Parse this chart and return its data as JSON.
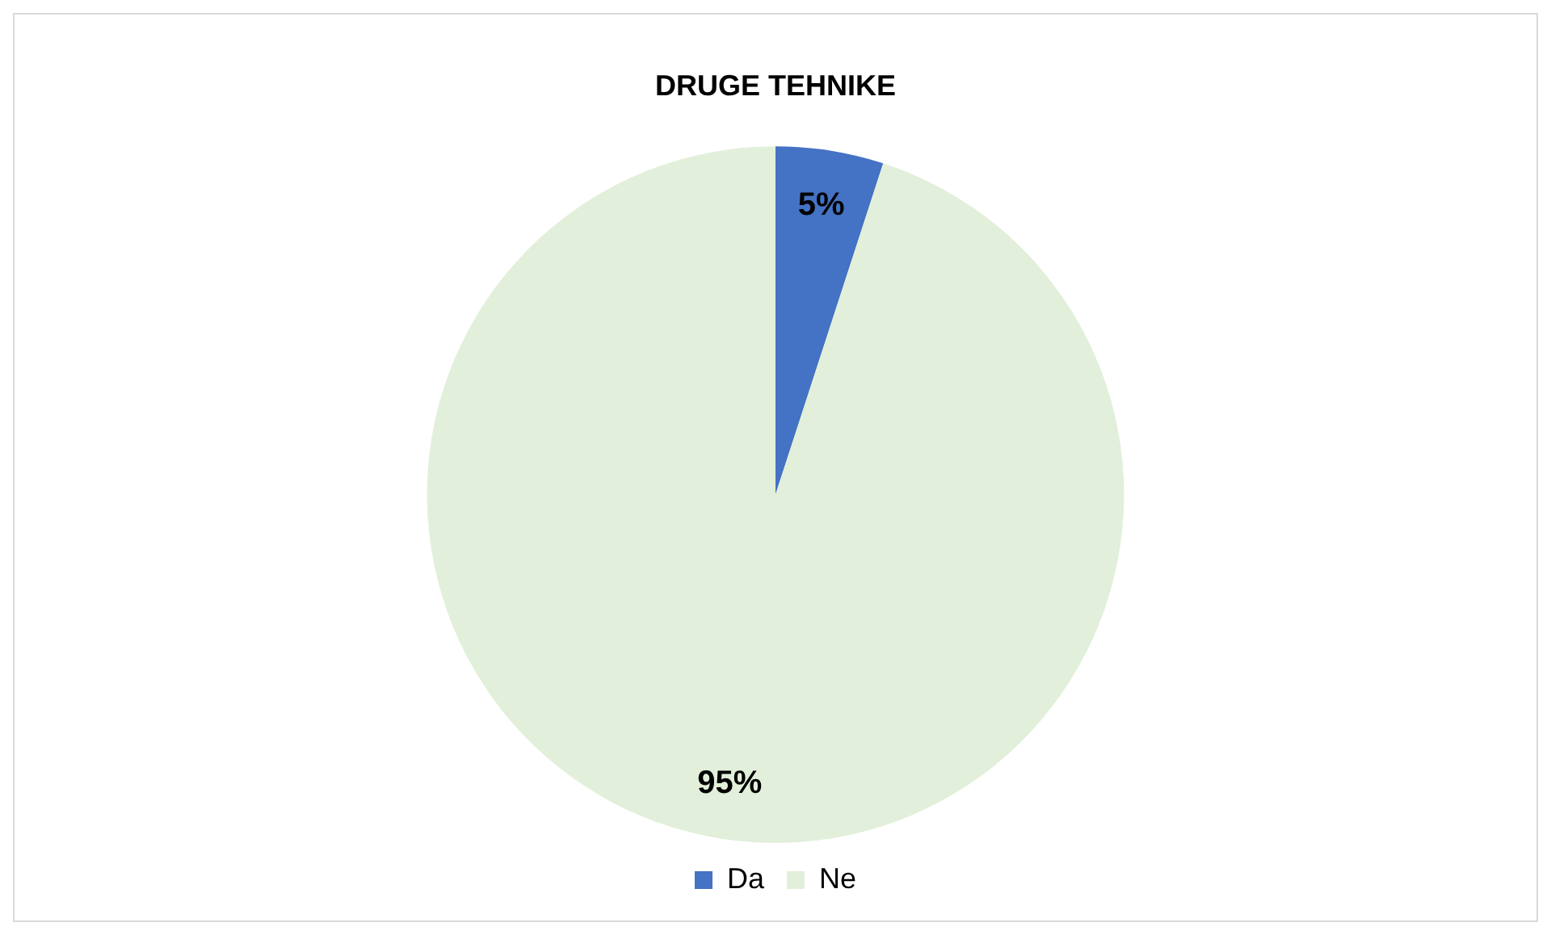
{
  "chart_data": {
    "type": "pie",
    "title": "DRUGE TEHNIKE",
    "categories": [
      "Da",
      "Ne"
    ],
    "values": [
      5,
      95
    ],
    "colors": [
      "#4472c4",
      "#e2efda"
    ],
    "value_labels": [
      "5%",
      "95%"
    ],
    "legend": "bottom"
  }
}
